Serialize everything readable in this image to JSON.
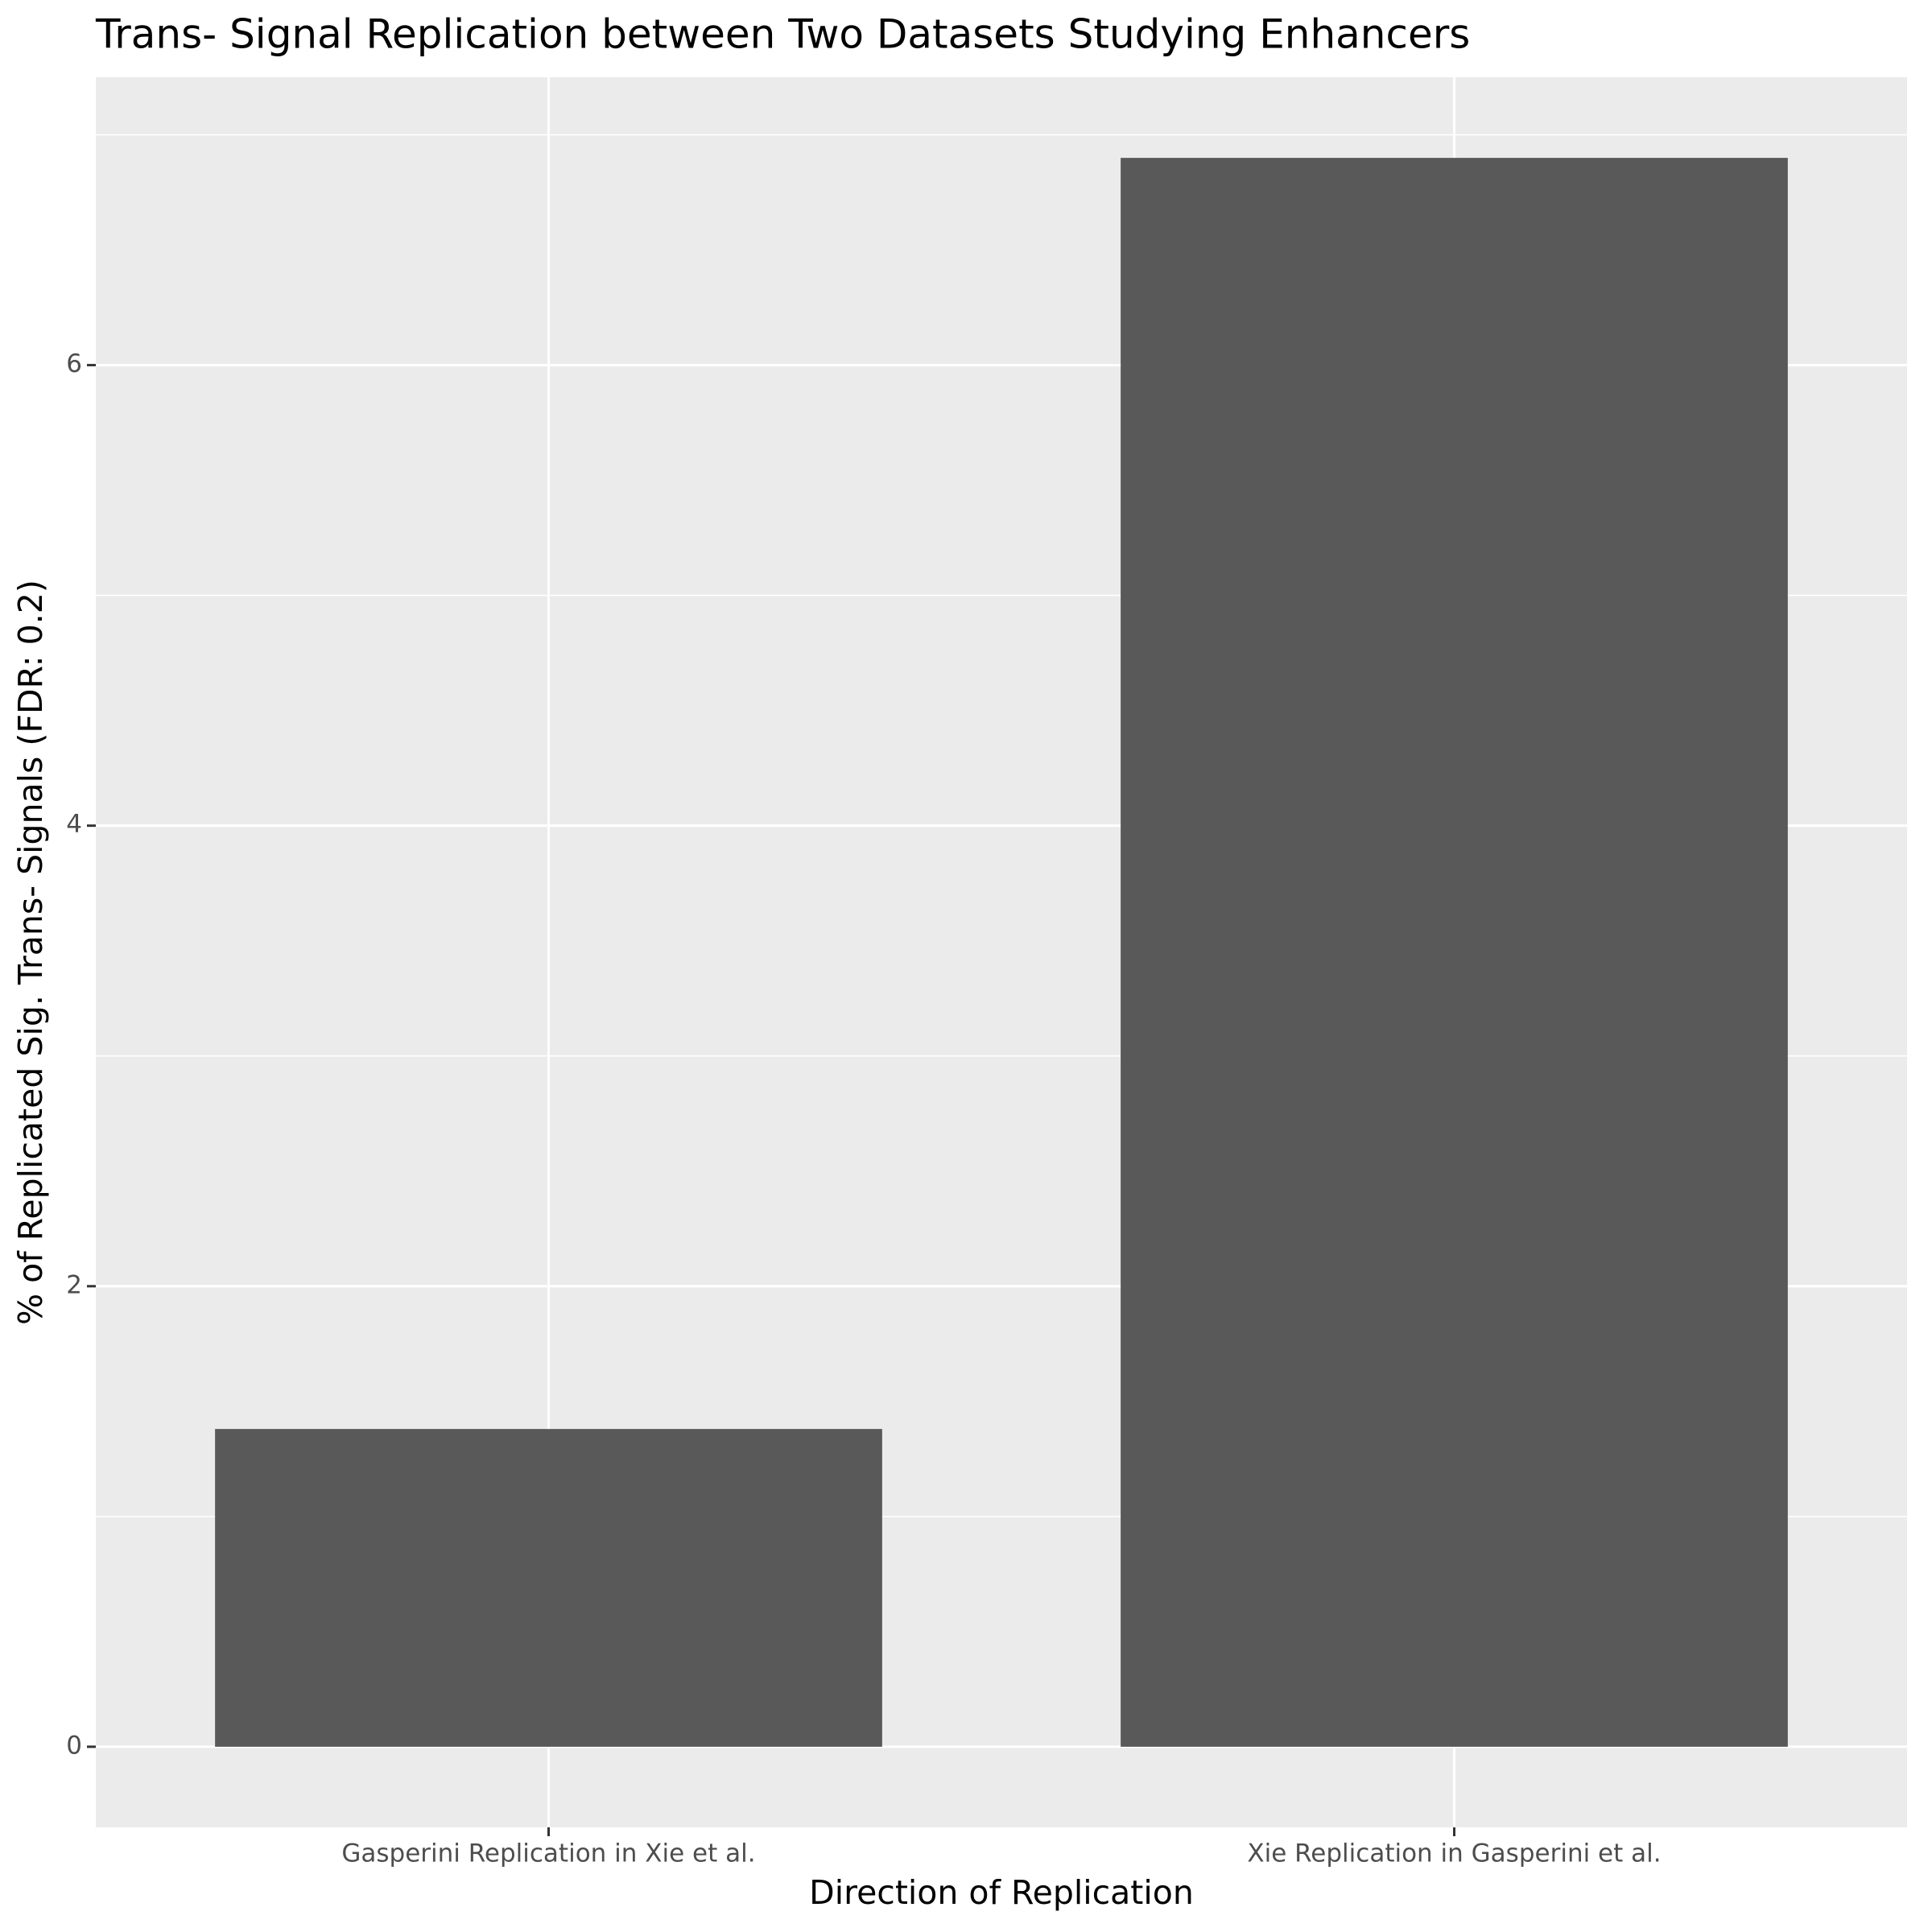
{
  "chart_data": {
    "type": "bar",
    "title": "Trans- Signal Replication between Two Datasets Studying Enhancers",
    "x_label": "Direction of Replication",
    "y_label": "% of Replicated Sig. Trans- Signals (FDR: 0.2)",
    "categories": [
      "Gasperini Replication in Xie et al.",
      "Xie Replication in Gasperini et al."
    ],
    "values": [
      1.38,
      6.9
    ],
    "color": "#595959",
    "ylim": [
      -0.35,
      7.25
    ],
    "yticks": [
      0,
      2,
      4,
      6
    ],
    "grid": true
  }
}
